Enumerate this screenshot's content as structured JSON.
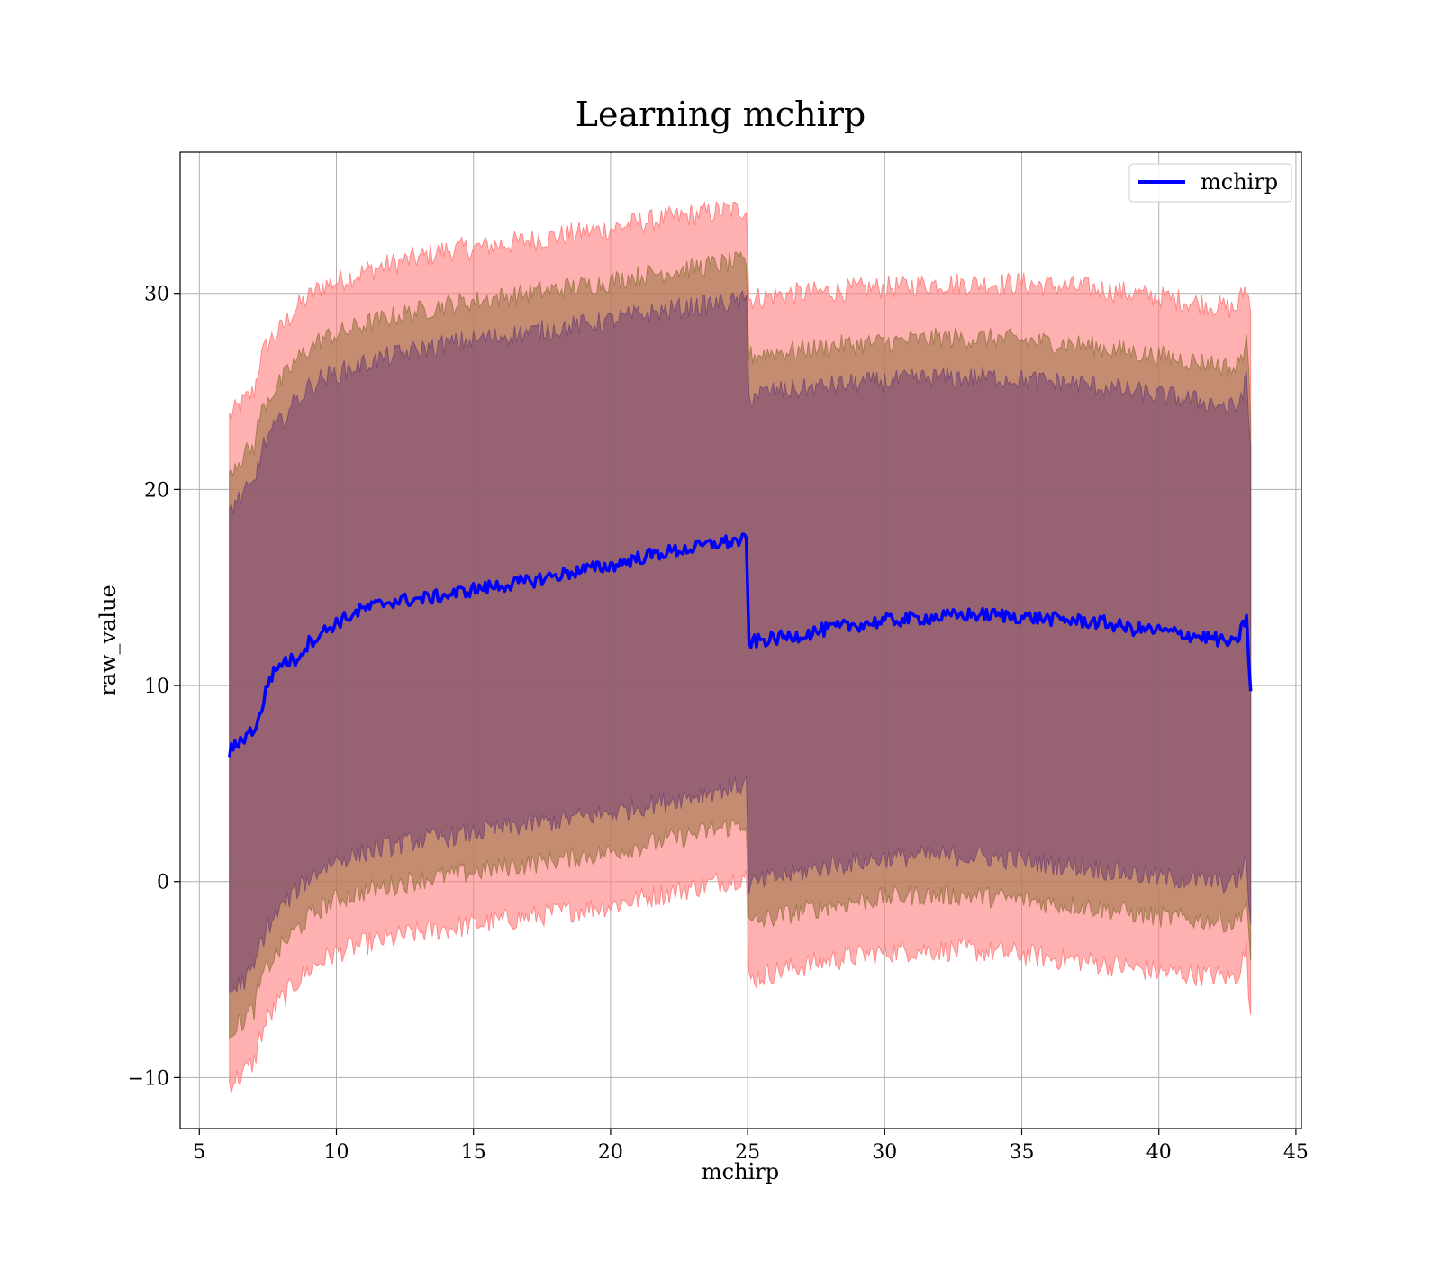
{
  "chart_data": {
    "type": "line",
    "title": "Learning mchirp",
    "xlabel": "mchirp",
    "ylabel": "raw_value",
    "xlim": [
      4.3,
      45.2
    ],
    "ylim": [
      -12.6,
      37.2
    ],
    "xticks": [
      5,
      10,
      15,
      20,
      25,
      30,
      35,
      40,
      45
    ],
    "yticks": [
      -10,
      0,
      10,
      20,
      30
    ],
    "xtick_labels": [
      "5",
      "10",
      "15",
      "20",
      "25",
      "30",
      "35",
      "40",
      "45"
    ],
    "ytick_labels": [
      "−10",
      "0",
      "10",
      "20",
      "30"
    ],
    "grid": true,
    "legend": {
      "placement": "top-right",
      "entries": [
        "mchirp"
      ]
    },
    "colors": {
      "line": "#0000ff",
      "band_outer": "#ff7f7f",
      "band_middle": "#a0784a",
      "band_inner": "#7a4a72",
      "grid": "#b0b0b0"
    },
    "series": [
      {
        "name": "mchirp",
        "x": [
          6.1,
          6.5,
          7.0,
          7.2,
          7.5,
          8.0,
          8.5,
          9.0,
          9.5,
          10.0,
          11.0,
          12.0,
          13.0,
          14.0,
          15.0,
          16.0,
          17.0,
          18.0,
          19.0,
          20.0,
          21.0,
          22.0,
          23.0,
          24.0,
          24.95,
          25.05,
          26.0,
          27.0,
          28.0,
          29.0,
          30.0,
          31.0,
          32.0,
          33.0,
          34.0,
          35.0,
          36.0,
          37.0,
          38.0,
          39.0,
          40.0,
          41.0,
          42.0,
          42.8,
          43.2,
          43.35
        ],
        "y": [
          6.6,
          7.2,
          7.8,
          8.3,
          10.2,
          11.2,
          11.3,
          12.2,
          12.7,
          13.2,
          13.9,
          14.3,
          14.4,
          14.6,
          14.9,
          15.1,
          15.3,
          15.6,
          15.9,
          16.1,
          16.5,
          16.8,
          17.0,
          17.3,
          17.4,
          12.2,
          12.4,
          12.6,
          12.9,
          13.1,
          13.3,
          13.4,
          13.5,
          13.6,
          13.6,
          13.5,
          13.4,
          13.3,
          13.2,
          12.9,
          12.8,
          12.6,
          12.4,
          12.1,
          13.5,
          9.6
        ],
        "band_outer": {
          "upper": [
            23.7,
            24.3,
            25.0,
            26.5,
            27.5,
            28.2,
            29.2,
            29.8,
            30.4,
            30.6,
            31.1,
            31.5,
            31.8,
            32.2,
            32.3,
            32.5,
            32.7,
            32.9,
            33.1,
            33.3,
            33.6,
            33.8,
            34.0,
            34.2,
            34.3,
            29.7,
            29.9,
            30.0,
            30.1,
            30.2,
            30.3,
            30.4,
            30.5,
            30.5,
            30.5,
            30.5,
            30.4,
            30.3,
            30.2,
            30.0,
            29.8,
            29.6,
            29.4,
            29.2,
            30.4,
            29.0
          ],
          "lower": [
            -10.3,
            -9.9,
            -9.2,
            -8.0,
            -7.0,
            -6.0,
            -5.2,
            -4.5,
            -4.0,
            -3.6,
            -3.2,
            -2.9,
            -2.6,
            -2.4,
            -2.2,
            -2.0,
            -1.8,
            -1.6,
            -1.4,
            -1.2,
            -0.9,
            -0.6,
            -0.3,
            0.0,
            0.3,
            -5.0,
            -4.6,
            -4.3,
            -4.0,
            -3.8,
            -3.6,
            -3.5,
            -3.5,
            -3.5,
            -3.6,
            -3.7,
            -3.9,
            -4.0,
            -4.2,
            -4.4,
            -4.6,
            -4.7,
            -4.8,
            -4.9,
            -3.5,
            -7.3
          ]
        },
        "band_middle": {
          "upper": [
            21.0,
            21.6,
            22.2,
            23.7,
            24.7,
            25.5,
            26.5,
            27.2,
            27.7,
            27.9,
            28.4,
            28.8,
            29.1,
            29.4,
            29.6,
            29.8,
            30.0,
            30.2,
            30.4,
            30.6,
            30.9,
            31.1,
            31.3,
            31.5,
            31.6,
            26.8,
            27.0,
            27.1,
            27.3,
            27.4,
            27.5,
            27.6,
            27.7,
            27.7,
            27.7,
            27.6,
            27.5,
            27.4,
            27.2,
            27.0,
            26.8,
            26.6,
            26.4,
            26.1,
            27.5,
            24.0
          ],
          "lower": [
            -7.6,
            -7.2,
            -6.5,
            -5.3,
            -4.3,
            -3.3,
            -2.5,
            -1.8,
            -1.3,
            -0.9,
            -0.5,
            -0.2,
            0.1,
            0.3,
            0.5,
            0.7,
            0.9,
            1.1,
            1.3,
            1.5,
            1.8,
            2.1,
            2.4,
            2.7,
            3.0,
            -2.2,
            -1.8,
            -1.5,
            -1.2,
            -1.0,
            -0.8,
            -0.7,
            -0.7,
            -0.7,
            -0.8,
            -0.9,
            -1.1,
            -1.2,
            -1.4,
            -1.6,
            -1.8,
            -1.9,
            -2.0,
            -2.1,
            -1.0,
            -4.5
          ]
        },
        "band_inner": {
          "upper": [
            19.0,
            19.6,
            20.2,
            21.7,
            22.7,
            23.5,
            24.5,
            25.2,
            25.7,
            25.9,
            26.4,
            26.8,
            27.1,
            27.4,
            27.6,
            27.8,
            28.0,
            28.2,
            28.4,
            28.6,
            28.9,
            29.1,
            29.3,
            29.5,
            29.6,
            24.8,
            25.0,
            25.1,
            25.3,
            25.4,
            25.5,
            25.6,
            25.7,
            25.7,
            25.7,
            25.6,
            25.5,
            25.4,
            25.2,
            25.0,
            24.8,
            24.6,
            24.4,
            24.1,
            25.5,
            22.0
          ],
          "lower": [
            -5.6,
            -5.2,
            -4.5,
            -3.3,
            -2.3,
            -1.3,
            -0.5,
            0.2,
            0.7,
            1.1,
            1.5,
            1.8,
            2.1,
            2.3,
            2.5,
            2.7,
            2.9,
            3.1,
            3.3,
            3.5,
            3.8,
            4.1,
            4.4,
            4.7,
            5.0,
            -0.2,
            0.2,
            0.5,
            0.8,
            1.0,
            1.2,
            1.3,
            1.3,
            1.3,
            1.2,
            1.1,
            0.9,
            0.8,
            0.6,
            0.4,
            0.2,
            0.1,
            0.0,
            -0.1,
            1.0,
            -2.5
          ]
        }
      }
    ]
  }
}
